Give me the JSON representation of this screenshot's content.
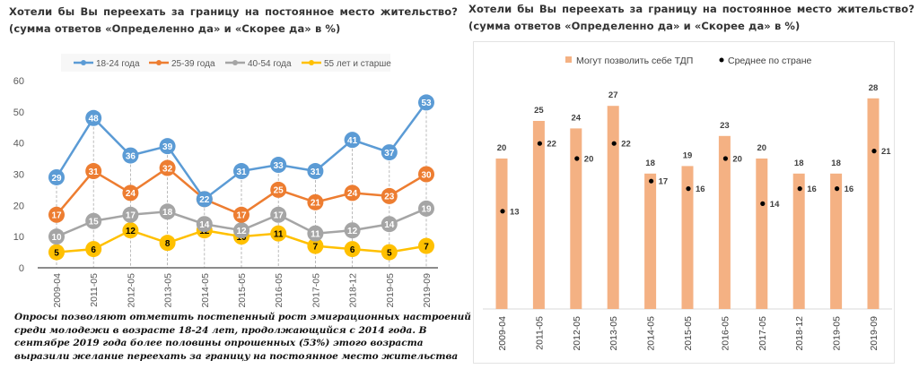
{
  "chart_data": [
    {
      "type": "line",
      "title": "Хотели бы Вы переехать за границу на постоянное место жительство? (сумма ответов «Определенно да» и «Скорее да» в %)",
      "categories": [
        "2009-04",
        "2011-05",
        "2012-05",
        "2013-05",
        "2014-05",
        "2015-05",
        "2016-05",
        "2017-05",
        "2018-12",
        "2019-05",
        "2019-09"
      ],
      "series": [
        {
          "name": "18-24 года",
          "color": "#5b9bd5",
          "values": [
            29,
            48,
            36,
            39,
            22,
            31,
            33,
            31,
            41,
            37,
            53
          ]
        },
        {
          "name": "25-39 года",
          "color": "#ed7d31",
          "values": [
            17,
            31,
            24,
            32,
            22,
            17,
            25,
            21,
            24,
            23,
            30
          ]
        },
        {
          "name": "40-54 года",
          "color": "#a5a5a5",
          "values": [
            10,
            15,
            17,
            18,
            14,
            12,
            17,
            11,
            12,
            14,
            19
          ]
        },
        {
          "name": "55 лет и старше",
          "color": "#ffc000",
          "values": [
            5,
            6,
            12,
            8,
            12,
            10,
            11,
            7,
            6,
            5,
            7
          ]
        }
      ],
      "yticks": [
        0,
        10,
        20,
        30,
        40,
        50,
        60
      ],
      "ylim": [
        0,
        60
      ],
      "xlabel": "",
      "ylabel": "",
      "legend": "top",
      "grid": false
    },
    {
      "type": "bar",
      "title": "Хотели бы Вы переехать за границу на постоянное место жительство? (сумма ответов «Определенно да» и «Скорее да» в %)",
      "categories": [
        "2009-04",
        "2011-05",
        "2012-05",
        "2013-05",
        "2014-05",
        "2015-05",
        "2016-05",
        "2017-05",
        "2018-12",
        "2019-05",
        "2019-09"
      ],
      "series": [
        {
          "name": "Могут позволить себе ТДП",
          "kind": "bar",
          "color": "#f4b183",
          "values": [
            20,
            25,
            24,
            27,
            18,
            19,
            23,
            20,
            18,
            18,
            28
          ]
        },
        {
          "name": "Среднее по стране",
          "kind": "point",
          "color": "#000000",
          "values": [
            13,
            22,
            20,
            22,
            17,
            16,
            20,
            14,
            16,
            16,
            21
          ]
        }
      ],
      "ylim": [
        0,
        30
      ],
      "xlabel": "",
      "ylabel": "",
      "legend": "top",
      "grid": false
    }
  ],
  "left": {
    "title": "Хотели бы Вы переехать за границу на постоянное место жительство? (сумма ответов «Определенно да» и «Скорее да» в %)",
    "caption": "Опросы позволяют отметить постепенный рост эмиграционных настроений среди молодежи в возрасте 18-24 лет, продолжающийся с 2014 года. В сентябре 2019 года более половины опрошенных (53%) этого возраста выразили желание переехать за границу на постоянное место жительства"
  },
  "right": {
    "title": "Хотели бы Вы переехать за границу на постоянное место жительство? (сумма ответов «Определенно да» и «Скорее да» в %)"
  }
}
